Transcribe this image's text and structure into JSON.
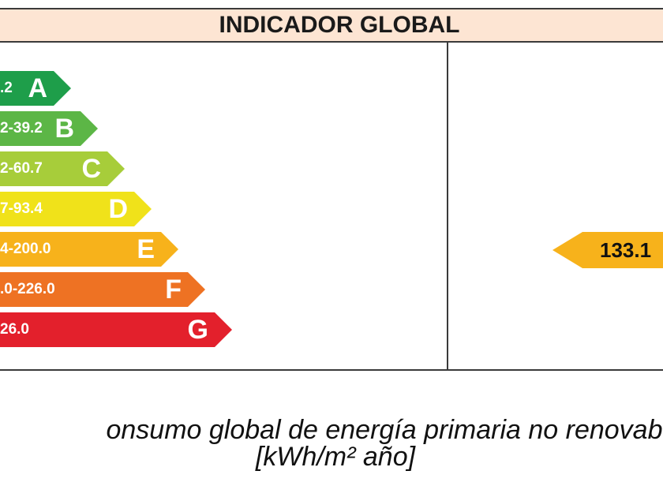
{
  "header": {
    "title": "INDICADOR GLOBAL"
  },
  "scale": [
    {
      "range": ".2",
      "letter": "A",
      "color": "#1e9e4a"
    },
    {
      "range": "2-39.2",
      "letter": "B",
      "color": "#5cb646"
    },
    {
      "range": "2-60.7",
      "letter": "C",
      "color": "#a7cd3a"
    },
    {
      "range": "7-93.4",
      "letter": "D",
      "color": "#f0e21a"
    },
    {
      "range": "4-200.0",
      "letter": "E",
      "color": "#f7b21b"
    },
    {
      "range": ".0-226.0",
      "letter": "F",
      "color": "#ee7223"
    },
    {
      "range": "26.0",
      "letter": "G",
      "color": "#e3202c"
    }
  ],
  "indicator": {
    "value": "133.1",
    "color": "#f7b21b"
  },
  "caption": {
    "line1": "onsumo global de energía primaria no renovab",
    "line2": "[kWh/m² año]"
  }
}
